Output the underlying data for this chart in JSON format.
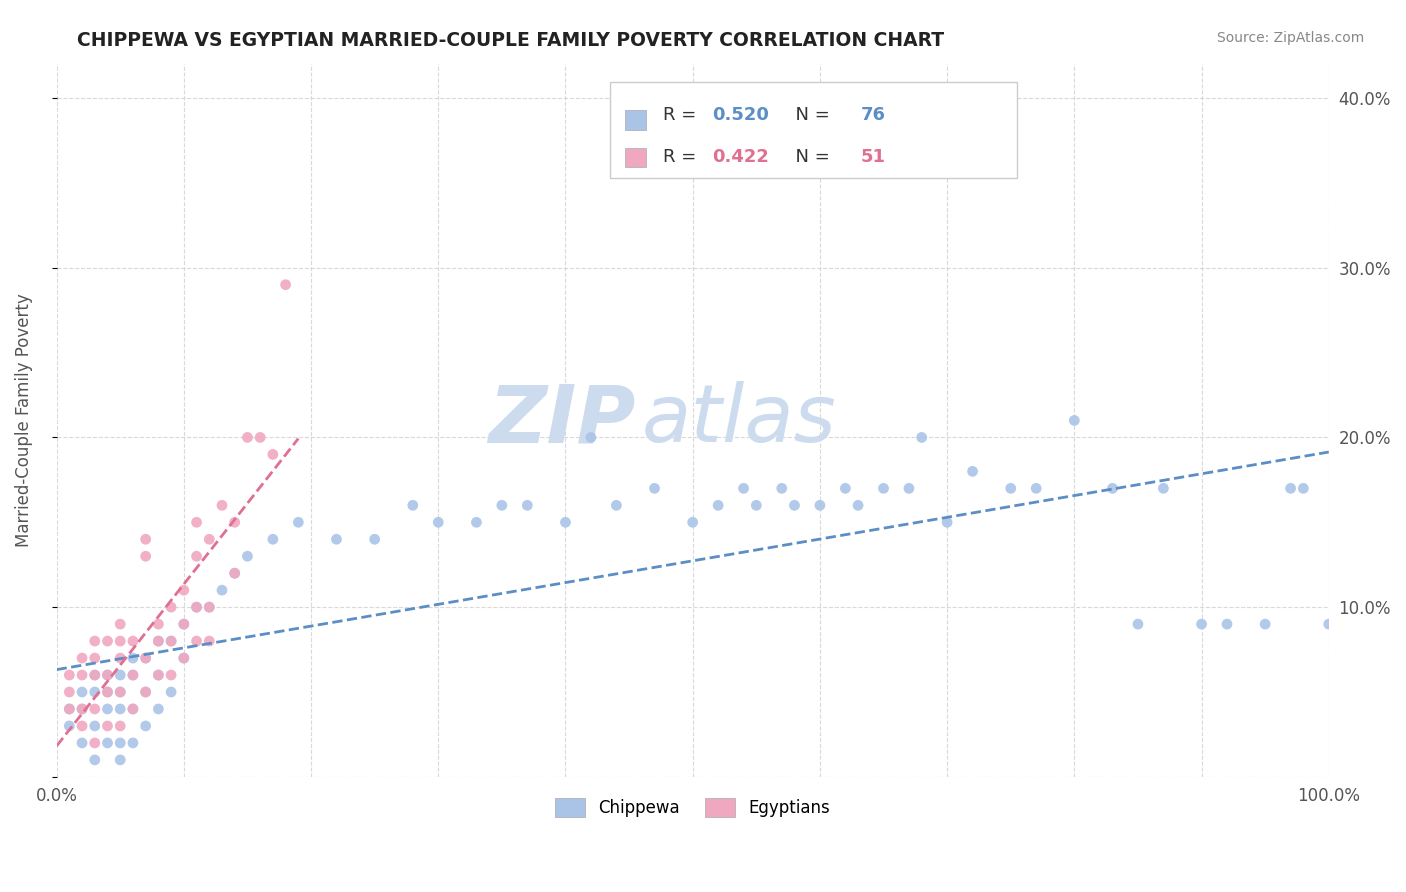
{
  "title": "CHIPPEWA VS EGYPTIAN MARRIED-COUPLE FAMILY POVERTY CORRELATION CHART",
  "source": "Source: ZipAtlas.com",
  "ylabel": "Married-Couple Family Poverty",
  "xlim": [
    0,
    1.0
  ],
  "ylim": [
    0,
    0.42
  ],
  "xticks": [
    0.0,
    0.1,
    0.2,
    0.3,
    0.4,
    0.5,
    0.6,
    0.7,
    0.8,
    0.9,
    1.0
  ],
  "xticklabels": [
    "0.0%",
    "",
    "",
    "",
    "",
    "",
    "",
    "",
    "",
    "",
    "100.0%"
  ],
  "yticks": [
    0.0,
    0.1,
    0.2,
    0.3,
    0.4
  ],
  "yticklabels_right": [
    "",
    "10.0%",
    "20.0%",
    "30.0%",
    "40.0%"
  ],
  "chippewa_color": "#aac4e8",
  "egyptian_color": "#f0a8c0",
  "chippewa_line_color": "#5b8ec4",
  "egyptian_line_color": "#e07090",
  "R_chippewa": 0.52,
  "N_chippewa": 76,
  "R_egyptian": 0.422,
  "N_egyptian": 51,
  "watermark_zip": "ZIP",
  "watermark_atlas": "atlas",
  "watermark_color": "#ccdcee",
  "grid_color": "#d0d0d0",
  "background_color": "#ffffff",
  "chippewa_x": [
    0.01,
    0.01,
    0.02,
    0.02,
    0.02,
    0.03,
    0.03,
    0.03,
    0.03,
    0.04,
    0.04,
    0.04,
    0.04,
    0.05,
    0.05,
    0.05,
    0.05,
    0.05,
    0.06,
    0.06,
    0.06,
    0.06,
    0.07,
    0.07,
    0.07,
    0.08,
    0.08,
    0.08,
    0.09,
    0.09,
    0.1,
    0.1,
    0.11,
    0.12,
    0.13,
    0.14,
    0.15,
    0.17,
    0.19,
    0.22,
    0.25,
    0.28,
    0.3,
    0.33,
    0.35,
    0.37,
    0.4,
    0.42,
    0.44,
    0.47,
    0.5,
    0.52,
    0.54,
    0.55,
    0.57,
    0.58,
    0.6,
    0.62,
    0.63,
    0.65,
    0.67,
    0.68,
    0.7,
    0.72,
    0.75,
    0.77,
    0.8,
    0.83,
    0.85,
    0.87,
    0.9,
    0.92,
    0.95,
    0.97,
    0.98,
    1.0
  ],
  "chippewa_y": [
    0.03,
    0.04,
    0.02,
    0.04,
    0.05,
    0.01,
    0.03,
    0.05,
    0.06,
    0.02,
    0.04,
    0.05,
    0.06,
    0.01,
    0.02,
    0.04,
    0.05,
    0.06,
    0.02,
    0.04,
    0.06,
    0.07,
    0.03,
    0.05,
    0.07,
    0.04,
    0.06,
    0.08,
    0.05,
    0.08,
    0.07,
    0.09,
    0.1,
    0.1,
    0.11,
    0.12,
    0.13,
    0.14,
    0.15,
    0.14,
    0.14,
    0.16,
    0.15,
    0.15,
    0.16,
    0.16,
    0.15,
    0.2,
    0.16,
    0.17,
    0.15,
    0.16,
    0.17,
    0.16,
    0.17,
    0.16,
    0.16,
    0.17,
    0.16,
    0.17,
    0.17,
    0.2,
    0.15,
    0.18,
    0.17,
    0.17,
    0.21,
    0.17,
    0.09,
    0.17,
    0.09,
    0.09,
    0.09,
    0.17,
    0.17,
    0.09
  ],
  "egyptian_x": [
    0.01,
    0.01,
    0.01,
    0.02,
    0.02,
    0.02,
    0.02,
    0.03,
    0.03,
    0.03,
    0.03,
    0.03,
    0.04,
    0.04,
    0.04,
    0.04,
    0.05,
    0.05,
    0.05,
    0.05,
    0.05,
    0.06,
    0.06,
    0.06,
    0.07,
    0.07,
    0.07,
    0.07,
    0.08,
    0.08,
    0.08,
    0.09,
    0.09,
    0.09,
    0.1,
    0.1,
    0.1,
    0.11,
    0.11,
    0.11,
    0.11,
    0.12,
    0.12,
    0.12,
    0.13,
    0.14,
    0.14,
    0.15,
    0.16,
    0.17,
    0.18
  ],
  "egyptian_y": [
    0.04,
    0.05,
    0.06,
    0.03,
    0.04,
    0.06,
    0.07,
    0.02,
    0.04,
    0.06,
    0.07,
    0.08,
    0.03,
    0.05,
    0.06,
    0.08,
    0.03,
    0.05,
    0.07,
    0.08,
    0.09,
    0.04,
    0.06,
    0.08,
    0.05,
    0.07,
    0.13,
    0.14,
    0.06,
    0.08,
    0.09,
    0.06,
    0.08,
    0.1,
    0.07,
    0.09,
    0.11,
    0.08,
    0.1,
    0.13,
    0.15,
    0.08,
    0.1,
    0.14,
    0.16,
    0.12,
    0.15,
    0.2,
    0.2,
    0.19,
    0.29
  ]
}
